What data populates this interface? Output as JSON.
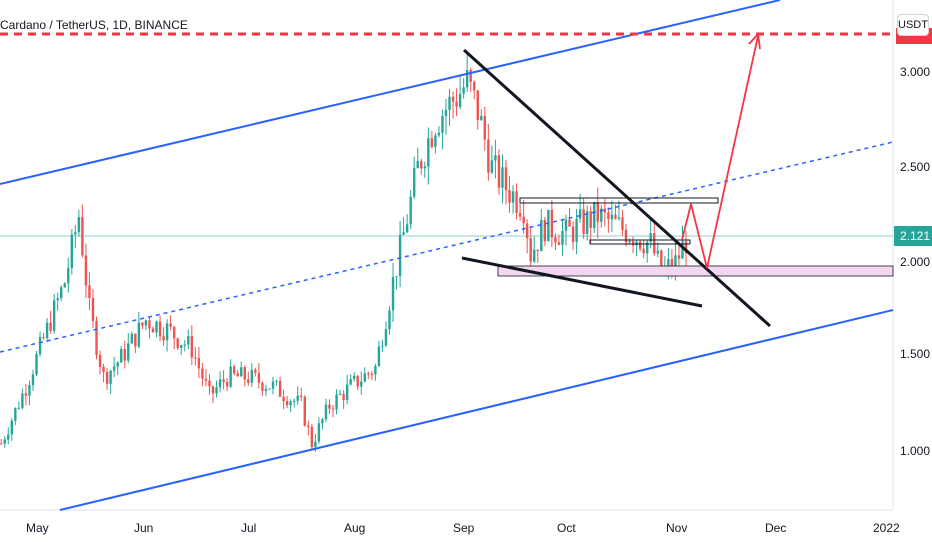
{
  "header": {
    "title": "Cardano / TetherUS, 1D, BINANCE",
    "currency": "USDT"
  },
  "colors": {
    "up": "#26a69a",
    "down": "#ef5350",
    "channel": "#2962ff",
    "current_price": "#26a69a",
    "target": "#f23645",
    "zone": "#f3d6f0"
  },
  "chart_data": {
    "type": "candlestick",
    "symbol": "Cardano / TetherUS",
    "interval": "1D",
    "exchange": "BINANCE",
    "y_ticks": [
      "3.000",
      "2.500",
      "2.000",
      "1.500",
      "1.000"
    ],
    "x_ticks": [
      "May",
      "Jun",
      "Jul",
      "Aug",
      "Sep",
      "Oct",
      "Nov",
      "Dec",
      "2022"
    ],
    "current_price": "2.121",
    "grid": false,
    "ohlc_close_path": [
      [
        "2021-04-24",
        1.05
      ],
      [
        "2021-05-01",
        1.35
      ],
      [
        "2021-05-05",
        1.55
      ],
      [
        "2021-05-12",
        1.9
      ],
      [
        "2021-05-16",
        2.25
      ],
      [
        "2021-05-19",
        1.75
      ],
      [
        "2021-05-23",
        1.4
      ],
      [
        "2021-05-28",
        1.5
      ],
      [
        "2021-06-04",
        1.7
      ],
      [
        "2021-06-10",
        1.65
      ],
      [
        "2021-06-17",
        1.55
      ],
      [
        "2021-06-22",
        1.3
      ],
      [
        "2021-06-27",
        1.4
      ],
      [
        "2021-07-03",
        1.4
      ],
      [
        "2021-07-10",
        1.35
      ],
      [
        "2021-07-18",
        1.25
      ],
      [
        "2021-07-21",
        1.05
      ],
      [
        "2021-07-26",
        1.25
      ],
      [
        "2021-08-01",
        1.35
      ],
      [
        "2021-08-08",
        1.45
      ],
      [
        "2021-08-13",
        1.9
      ],
      [
        "2021-08-16",
        2.15
      ],
      [
        "2021-08-20",
        2.5
      ],
      [
        "2021-08-25",
        2.75
      ],
      [
        "2021-09-01",
        2.9
      ],
      [
        "2021-09-03",
        2.95
      ],
      [
        "2021-09-06",
        2.8
      ],
      [
        "2021-09-10",
        2.5
      ],
      [
        "2021-09-14",
        2.4
      ],
      [
        "2021-09-19",
        2.3
      ],
      [
        "2021-09-21",
        2.05
      ],
      [
        "2021-09-25",
        2.2
      ],
      [
        "2021-10-01",
        2.15
      ],
      [
        "2021-10-05",
        2.2
      ],
      [
        "2021-10-10",
        2.25
      ],
      [
        "2021-10-15",
        2.2
      ],
      [
        "2021-10-20",
        2.15
      ],
      [
        "2021-10-25",
        2.1
      ],
      [
        "2021-10-28",
        1.95
      ],
      [
        "2021-11-01",
        2.0
      ],
      [
        "2021-11-04",
        2.12
      ]
    ],
    "drawings": {
      "ascending_channel": "upper, middle (dashed), lower blue lines",
      "falling_wedge": "two black trend lines",
      "support_zone": "2.000",
      "target_line": "red dashed line near 3.200 with projected arrow"
    }
  }
}
